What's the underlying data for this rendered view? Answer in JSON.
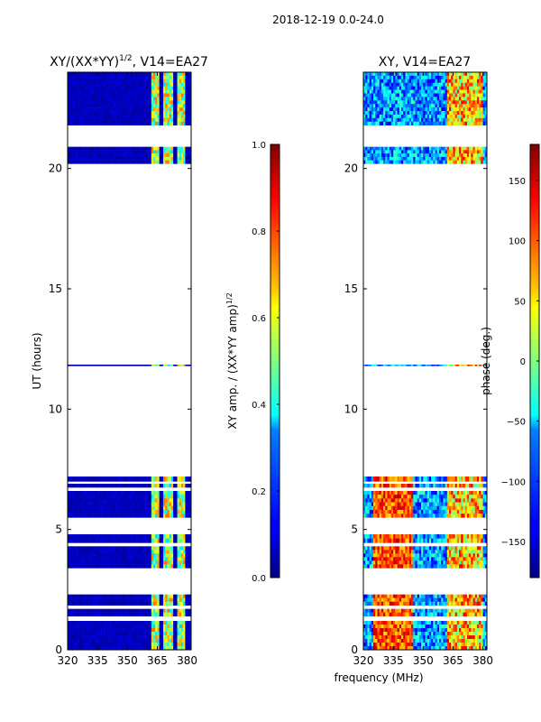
{
  "suptitle": "2018-12-19 0.0-24.0",
  "figure_xlabel": "frequency (MHz)",
  "colors": {
    "jet_low": "#00007f",
    "jet_high": "#7f0000",
    "axes": "#000000"
  },
  "chart_data": [
    {
      "type": "heatmap",
      "title": "XY/(XX*YY)",
      "title_superscript": "1/2",
      "title_suffix": ", V14=EA27",
      "xlabel": "",
      "ylabel": "UT (hours)",
      "xlim": [
        320,
        382
      ],
      "ylim": [
        0,
        24
      ],
      "xticks": [
        "320",
        "335",
        "350",
        "365",
        "380"
      ],
      "xtick_values": [
        320,
        335,
        350,
        365,
        380
      ],
      "yticks": [
        "0",
        "5",
        "10",
        "15",
        "20"
      ],
      "ytick_values": [
        0,
        5,
        10,
        15,
        20
      ],
      "value_range": [
        0.0,
        1.0
      ],
      "data_rows_ut": [
        [
          0.0,
          1.2
        ],
        [
          1.4,
          1.7
        ],
        [
          1.85,
          2.3
        ],
        [
          3.4,
          4.3
        ],
        [
          4.45,
          4.8
        ],
        [
          5.5,
          6.6
        ],
        [
          6.75,
          6.9
        ],
        [
          7.0,
          7.2
        ],
        [
          11.8,
          11.85
        ],
        [
          20.2,
          20.9
        ],
        [
          21.8,
          24.0
        ]
      ],
      "bright_band_mhz": [
        [
          362,
          366
        ],
        [
          368,
          373
        ],
        [
          375,
          379
        ]
      ],
      "band_level": 0.55,
      "background_level": 0.06,
      "colorbar": {
        "label": "XY amp. / (XX*YY amp)",
        "label_superscript": "1/2",
        "range": [
          0.0,
          1.0
        ],
        "ticks": [
          "0.0",
          "0.2",
          "0.4",
          "0.6",
          "0.8",
          "1.0"
        ],
        "tick_values": [
          0.0,
          0.2,
          0.4,
          0.6,
          0.8,
          1.0
        ]
      }
    },
    {
      "type": "heatmap",
      "title": "XY, V14=EA27",
      "xlabel": "",
      "ylabel": "",
      "xlim": [
        320,
        382
      ],
      "ylim": [
        0,
        24
      ],
      "xticks": [
        "320",
        "335",
        "350",
        "365",
        "380"
      ],
      "xtick_values": [
        320,
        335,
        350,
        365,
        380
      ],
      "yticks": [
        "0",
        "5",
        "10",
        "15",
        "20"
      ],
      "ytick_values": [
        0,
        5,
        10,
        15,
        20
      ],
      "value_range": [
        -180,
        180
      ],
      "data_rows_ut": [
        [
          0.0,
          1.2
        ],
        [
          1.4,
          1.7
        ],
        [
          1.85,
          2.3
        ],
        [
          3.4,
          4.3
        ],
        [
          4.45,
          4.8
        ],
        [
          5.5,
          6.6
        ],
        [
          6.75,
          6.9
        ],
        [
          7.0,
          7.2
        ],
        [
          11.8,
          11.85
        ],
        [
          20.2,
          20.9
        ],
        [
          21.8,
          24.0
        ]
      ],
      "hot_phase_region_mhz": [
        [
          325,
          345
        ]
      ],
      "hot_band_mhz": [
        [
          362,
          380
        ]
      ],
      "colorbar": {
        "label": "phase (deg.)",
        "range": [
          -180,
          180
        ],
        "ticks": [
          "−150",
          "−100",
          "−50",
          "0",
          "50",
          "100",
          "150"
        ],
        "tick_values": [
          -150,
          -100,
          -50,
          0,
          50,
          100,
          150
        ]
      }
    }
  ]
}
